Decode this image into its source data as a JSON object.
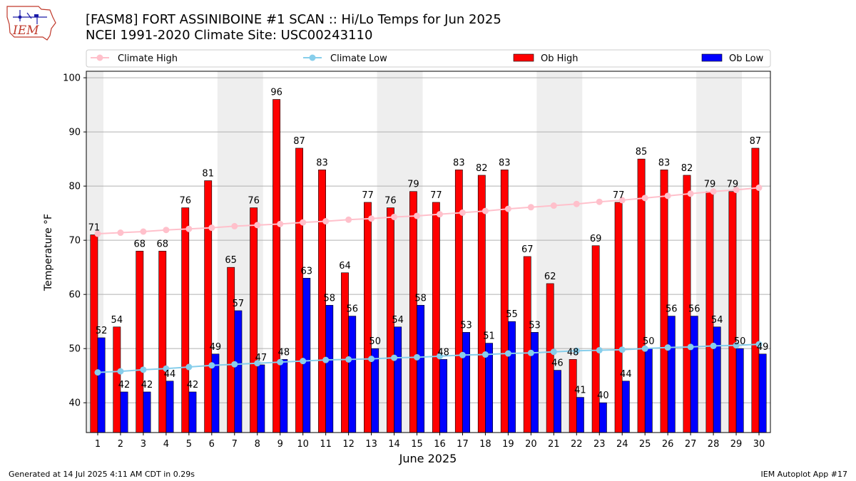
{
  "header": {
    "title_line1": "[FASM8] FORT ASSINIBOINE #1 SCAN :: Hi/Lo Temps for Jun 2025",
    "title_line2": "NCEI 1991-2020 Climate Site: USC00243110",
    "logo_text": "IEM"
  },
  "footer": {
    "generated": "Generated at 14 Jul 2025 4:11 AM CDT in 0.29s",
    "app": "IEM Autoplot App #17"
  },
  "colors": {
    "ob_high": "#ff0000",
    "ob_low": "#0000ff",
    "climate_high": "#ffc0cb",
    "climate_low": "#87ceeb",
    "weekend_band": "#eeeeee",
    "grid": "#b0b0b0"
  },
  "chart_data": {
    "type": "bar",
    "xlabel": "June 2025",
    "ylabel": "Temperature °F",
    "ylim": [
      34.5,
      101.2
    ],
    "yticks": [
      40,
      50,
      60,
      70,
      80,
      90,
      100
    ],
    "grid": true,
    "legend_position": "top",
    "categories": [
      "1",
      "2",
      "3",
      "4",
      "5",
      "6",
      "7",
      "8",
      "9",
      "10",
      "11",
      "12",
      "13",
      "14",
      "15",
      "16",
      "17",
      "18",
      "19",
      "20",
      "21",
      "22",
      "23",
      "24",
      "25",
      "26",
      "27",
      "28",
      "29",
      "30"
    ],
    "shaded_days": [
      [
        "1",
        "1"
      ],
      [
        "7",
        "8"
      ],
      [
        "14",
        "15"
      ],
      [
        "21",
        "22"
      ],
      [
        "28",
        "29"
      ]
    ],
    "series": [
      {
        "name": "Climate High",
        "kind": "line",
        "values": [
          71.2,
          71.4,
          71.6,
          71.9,
          72.1,
          72.3,
          72.6,
          72.8,
          73.0,
          73.3,
          73.5,
          73.8,
          74.0,
          74.3,
          74.5,
          74.8,
          75.1,
          75.4,
          75.8,
          76.1,
          76.4,
          76.7,
          77.1,
          77.4,
          77.8,
          78.2,
          78.6,
          79.0,
          79.3,
          79.7
        ]
      },
      {
        "name": "Climate Low",
        "kind": "line",
        "values": [
          45.6,
          45.8,
          46.1,
          46.3,
          46.6,
          46.9,
          47.1,
          47.3,
          47.5,
          47.7,
          47.9,
          48.0,
          48.1,
          48.3,
          48.4,
          48.6,
          48.8,
          48.9,
          49.1,
          49.2,
          49.4,
          49.6,
          49.7,
          49.8,
          50.0,
          50.2,
          50.3,
          50.5,
          50.6,
          50.8
        ]
      },
      {
        "name": "Ob High",
        "kind": "bar",
        "values": [
          71,
          54,
          68,
          68,
          76,
          81,
          65,
          76,
          96,
          87,
          83,
          64,
          77,
          76,
          79,
          77,
          83,
          82,
          83,
          67,
          62,
          48,
          69,
          77,
          85,
          83,
          82,
          79,
          79,
          87
        ]
      },
      {
        "name": "Ob Low",
        "kind": "bar",
        "values": [
          52,
          42,
          42,
          44,
          42,
          49,
          57,
          47,
          48,
          63,
          58,
          56,
          50,
          54,
          58,
          48,
          53,
          51,
          55,
          53,
          46,
          41,
          40,
          44,
          50,
          56,
          56,
          54,
          50,
          49
        ]
      }
    ]
  }
}
